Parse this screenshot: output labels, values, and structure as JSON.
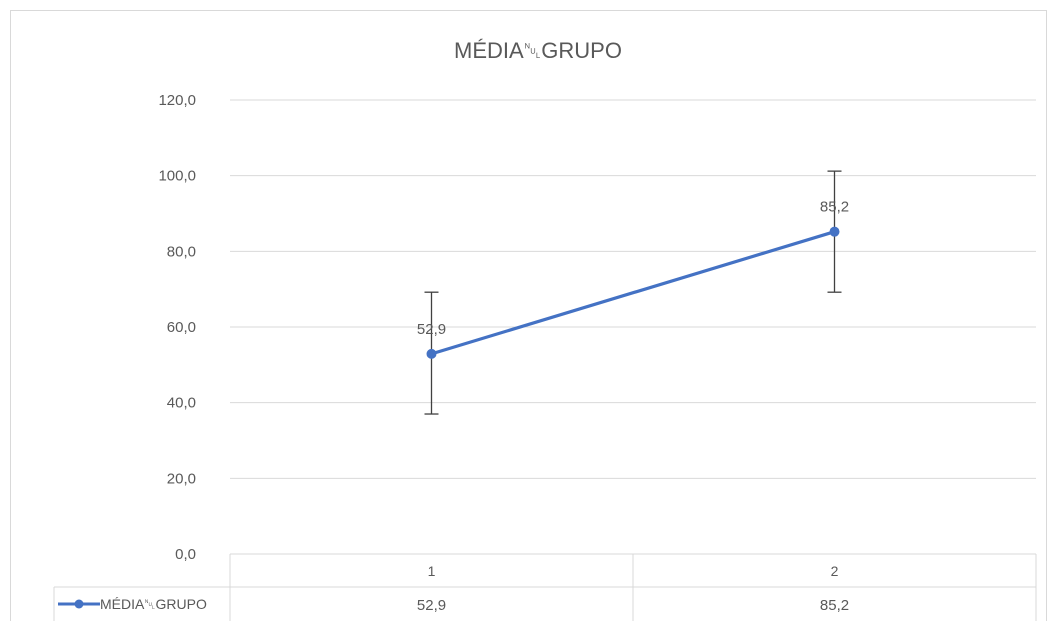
{
  "chart_data": {
    "type": "line",
    "title": "MÉDIA␀GRUPO",
    "categories": [
      "1",
      "2"
    ],
    "series": [
      {
        "name": "MÉDIA␀GRUPO",
        "values": [
          52.9,
          85.2
        ],
        "error_low": [
          37.0,
          69.2
        ],
        "error_high": [
          69.2,
          101.2
        ],
        "data_labels": [
          "52,9",
          "85,2"
        ],
        "color": "#4472C4"
      }
    ],
    "y_ticks": [
      "0,0",
      "20,0",
      "40,0",
      "60,0",
      "80,0",
      "100,0",
      "120,0"
    ],
    "ylim": [
      0,
      120
    ],
    "grid": true,
    "legend": "data-table-left",
    "data_table": {
      "header": [
        "1",
        "2"
      ],
      "row_label": "MÉDIA␀GRUPO",
      "row_values": [
        "52,9",
        "85,2"
      ]
    },
    "colors": {
      "gridline": "#D9D9D9",
      "axis_text": "#595959",
      "error_bar": "#404040",
      "border": "#D9D9D9"
    }
  }
}
